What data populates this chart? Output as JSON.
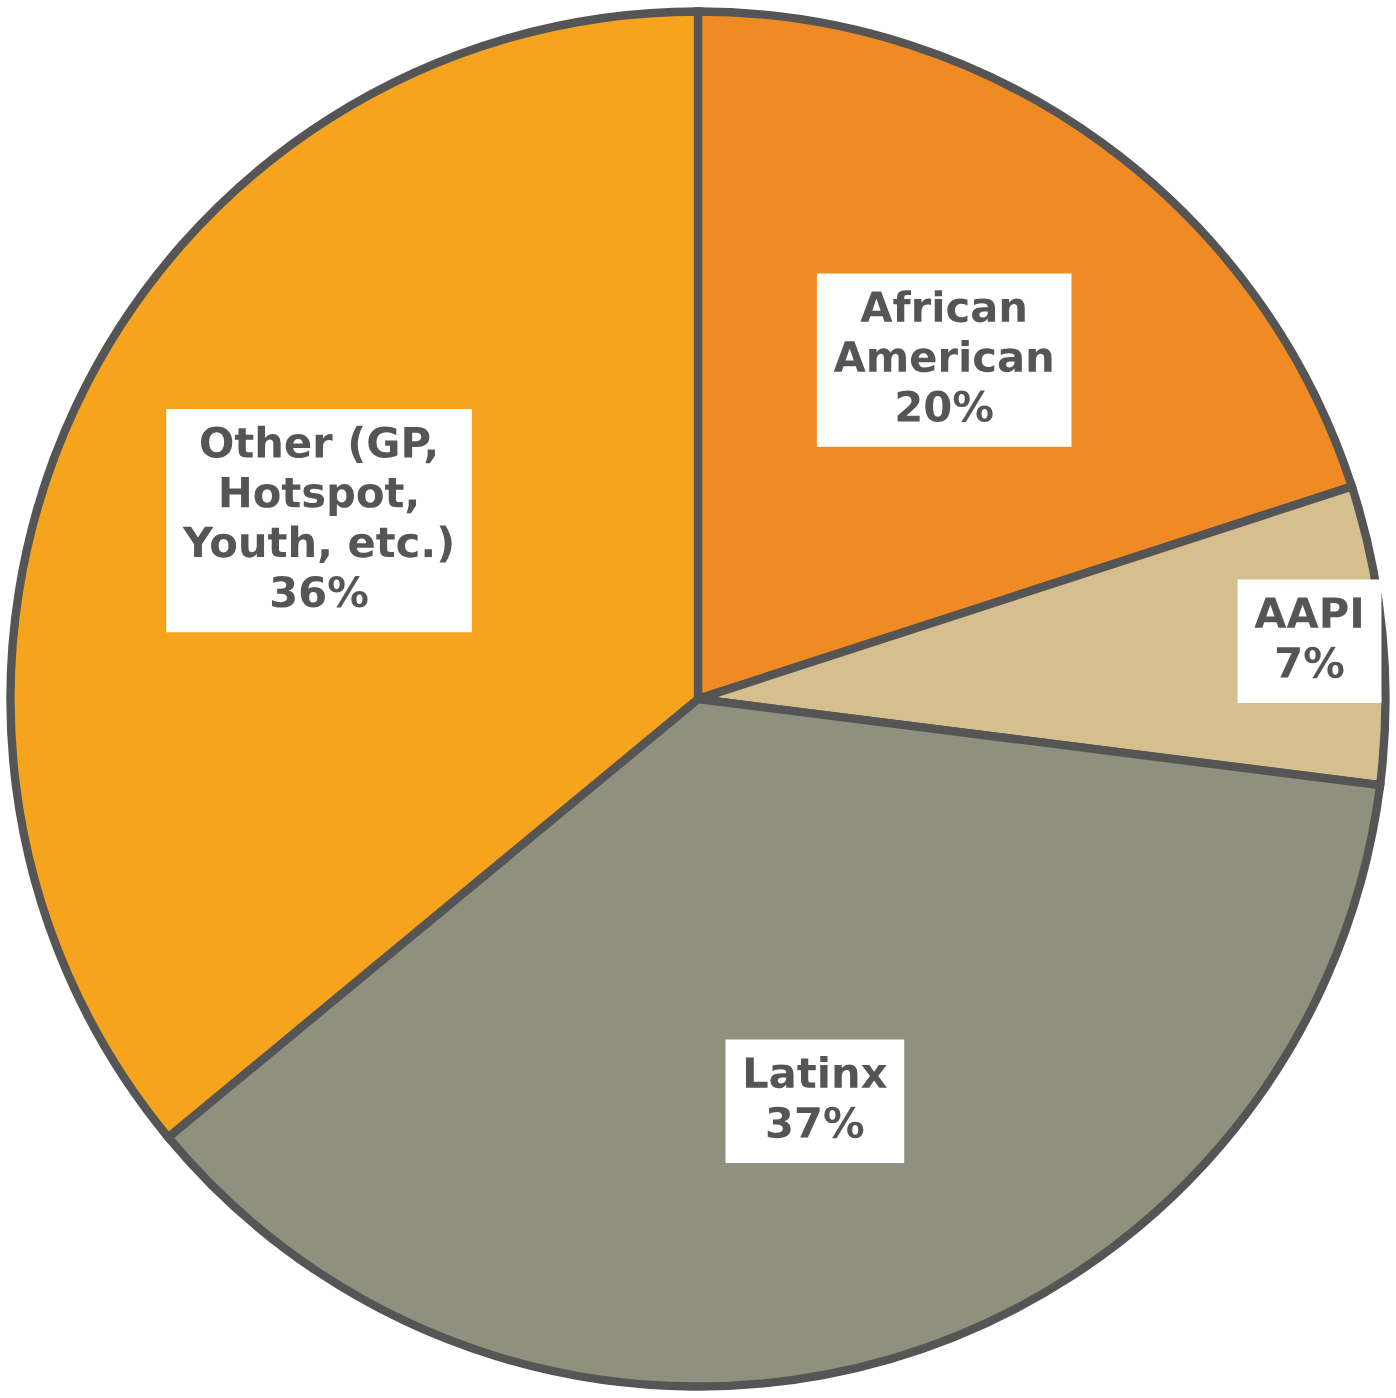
{
  "chart_data": {
    "type": "pie",
    "categories": [
      "African\nAmerican",
      "AAPI",
      "Latinx",
      "Other (GP,\nHotspot,\nYouth, etc.)"
    ],
    "values": [
      20,
      7,
      37,
      36
    ],
    "value_labels": [
      "20%",
      "7%",
      "37%",
      "36%"
    ],
    "colors": [
      "#f08a24",
      "#d5bf8e",
      "#90907f",
      "#f6a31d"
    ]
  }
}
